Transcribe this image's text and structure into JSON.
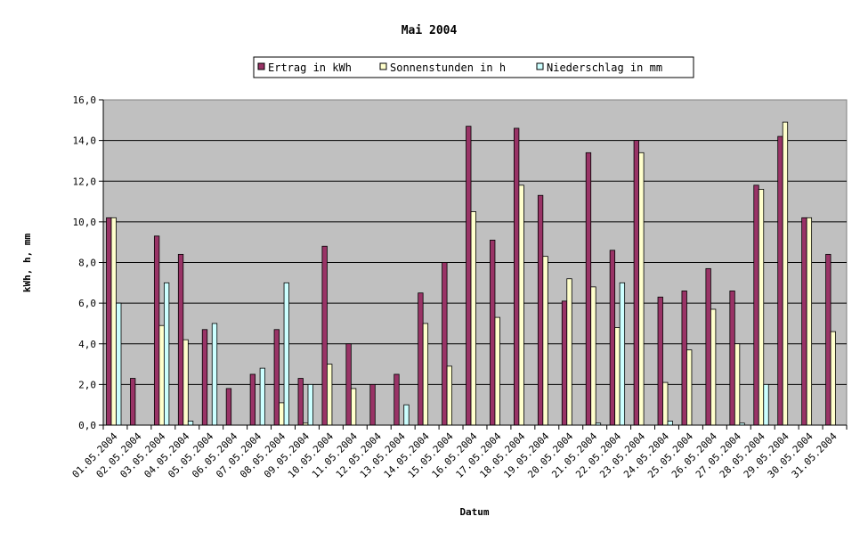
{
  "chart_data": {
    "type": "bar",
    "title": "Mai 2004",
    "xlabel": "Datum",
    "ylabel": "kWh, h, mm",
    "ylim": [
      0,
      16
    ],
    "yticks": [
      "0,0",
      "2,0",
      "4,0",
      "6,0",
      "8,0",
      "10,0",
      "12,0",
      "14,0",
      "16,0"
    ],
    "grid": true,
    "legend_position": "top",
    "plot_background": "#c0c0c0",
    "categories": [
      "01.05.2004",
      "02.05.2004",
      "03.05.2004",
      "04.05.2004",
      "05.05.2004",
      "06.05.2004",
      "07.05.2004",
      "08.05.2004",
      "09.05.2004",
      "10.05.2004",
      "11.05.2004",
      "12.05.2004",
      "13.05.2004",
      "14.05.2004",
      "15.05.2004",
      "16.05.2004",
      "17.05.2004",
      "18.05.2004",
      "19.05.2004",
      "20.05.2004",
      "21.05.2004",
      "22.05.2004",
      "23.05.2004",
      "24.05.2004",
      "25.05.2004",
      "26.05.2004",
      "27.05.2004",
      "28.05.2004",
      "29.05.2004",
      "30.05.2004",
      "31.05.2004"
    ],
    "series": [
      {
        "name": "Ertrag in kWh",
        "color": "#993366",
        "values": [
          10.2,
          2.3,
          9.3,
          8.4,
          4.7,
          1.8,
          2.5,
          4.7,
          2.3,
          8.8,
          4.0,
          2.0,
          2.5,
          6.5,
          8.0,
          14.7,
          9.1,
          14.6,
          11.3,
          6.1,
          13.4,
          8.6,
          14.0,
          6.3,
          6.6,
          7.7,
          6.6,
          11.8,
          14.2,
          10.2,
          8.4
        ]
      },
      {
        "name": "Sonnenstunden in h",
        "color": "#ffffcc",
        "values": [
          10.2,
          0,
          4.9,
          4.2,
          0,
          0,
          0,
          1.1,
          0.1,
          3.0,
          1.8,
          0,
          0,
          5.0,
          2.9,
          10.5,
          5.3,
          11.8,
          8.3,
          7.2,
          6.8,
          4.8,
          13.4,
          2.1,
          3.7,
          5.7,
          4.0,
          11.6,
          14.9,
          10.2,
          4.6
        ]
      },
      {
        "name": "Niederschlag in mm",
        "color": "#ccffff",
        "values": [
          6.0,
          0,
          7.0,
          0.2,
          5.0,
          0,
          2.8,
          7.0,
          2.0,
          0,
          0,
          0,
          1.0,
          0,
          0,
          0,
          0,
          0,
          0,
          0,
          0.1,
          7.0,
          0,
          0.2,
          0,
          0,
          0.1,
          2.0,
          0,
          0,
          0
        ]
      }
    ]
  }
}
